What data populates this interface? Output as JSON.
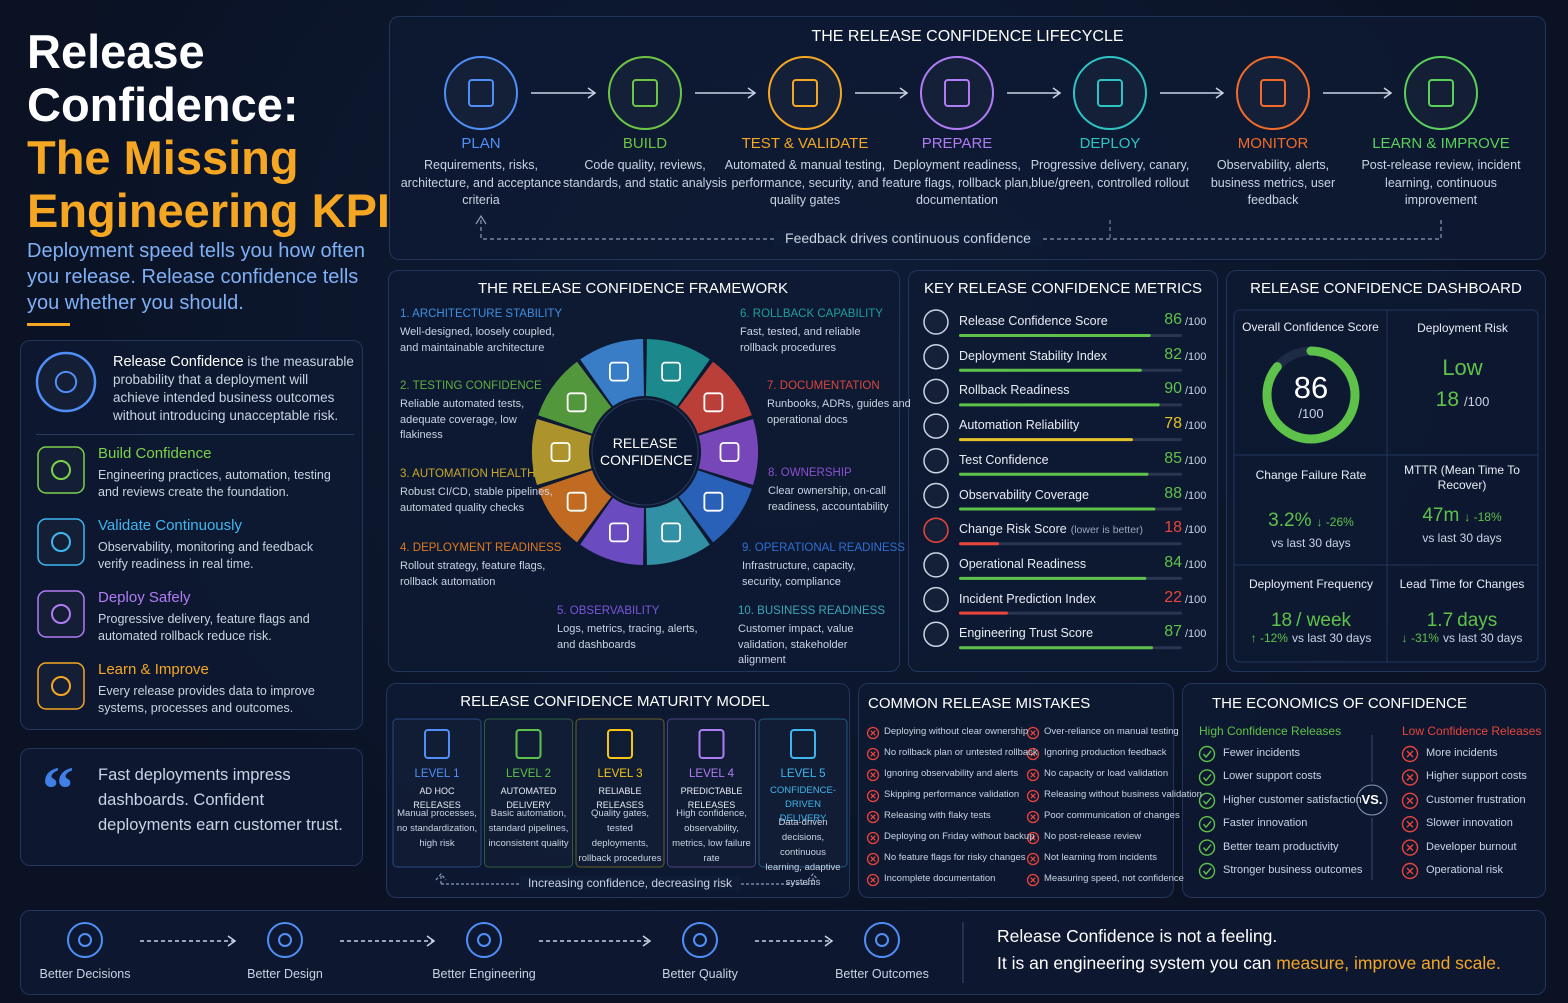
{
  "header": {
    "title_lines": [
      "Release",
      "Confidence:"
    ],
    "highlight_lines": [
      "The Missing",
      "Engineering KPI"
    ],
    "subtitle": "Deployment speed tells you how often you release. Release confidence tells you whether you should."
  },
  "definition": {
    "term": "Release Confidence",
    "text": " is the measurable probability that a deployment will achieve intended business outcomes without introducing unacceptable risk."
  },
  "pillars": [
    {
      "title": "Build Confidence",
      "text": "Engineering practices, automation, testing and reviews create the foundation.",
      "color": "#7bd14a"
    },
    {
      "title": "Validate Continuously",
      "text": "Observability, monitoring and feedback verify readiness in real time.",
      "color": "#3fb6f0"
    },
    {
      "title": "Deploy Safely",
      "text": "Progressive delivery, feature flags and automated rollback reduce risk.",
      "color": "#b07cf5"
    },
    {
      "title": "Learn & Improve",
      "text": "Every release provides data to improve systems, processes and outcomes.",
      "color": "#f5a623"
    }
  ],
  "quote": "Fast deployments impress dashboards. Confident deployments earn customer trust.",
  "lifecycle": {
    "title": "THE RELEASE CONFIDENCE LIFECYCLE",
    "feedback": "Feedback drives continuous confidence",
    "steps": [
      {
        "name": "PLAN",
        "desc": "Requirements, risks, architecture, and acceptance criteria",
        "color": "#4f8ff7"
      },
      {
        "name": "BUILD",
        "desc": "Code quality, reviews, standards, and static analysis",
        "color": "#6cc644"
      },
      {
        "name": "TEST & VALIDATE",
        "desc": "Automated & manual testing, performance, security, and quality gates",
        "color": "#f5a623"
      },
      {
        "name": "PREPARE",
        "desc": "Deployment readiness, feature flags, rollback plan, documentation",
        "color": "#b07cf5"
      },
      {
        "name": "DEPLOY",
        "desc": "Progressive delivery, canary, blue/green, controlled rollout",
        "color": "#2ec4c4"
      },
      {
        "name": "MONITOR",
        "desc": "Observability, alerts, business metrics, user feedback",
        "color": "#f26b2a"
      },
      {
        "name": "LEARN & IMPROVE",
        "desc": "Post-release review, incident learning, continuous improvement",
        "color": "#5ad05a"
      }
    ]
  },
  "framework": {
    "title": "THE RELEASE CONFIDENCE FRAMEWORK",
    "center": "RELEASE CONFIDENCE",
    "items": [
      {
        "title": "1. ARCHITECTURE STABILITY",
        "text": "Well-designed, loosely coupled, and maintainable architecture",
        "color": "#3f8fe0"
      },
      {
        "title": "2. TESTING CONFIDENCE",
        "text": "Reliable automated tests, adequate coverage, low flakiness",
        "color": "#5fae3e"
      },
      {
        "title": "3. AUTOMATION HEALTH",
        "text": "Robust CI/CD, stable pipelines, automated quality checks",
        "color": "#c9a92a"
      },
      {
        "title": "4. DEPLOYMENT READINESS",
        "text": "Rollout strategy, feature flags, rollback automation",
        "color": "#e07a1f"
      },
      {
        "title": "5. OBSERVABILITY",
        "text": "Logs, metrics, tracing, alerts, and dashboards",
        "color": "#7b55d9"
      },
      {
        "title": "6. ROLLBACK CAPABILITY",
        "text": "Fast, tested, and reliable rollback procedures",
        "color": "#1f9e9e"
      },
      {
        "title": "7. DOCUMENTATION",
        "text": "Runbooks, ADRs, guides and operational docs",
        "color": "#d9473b"
      },
      {
        "title": "8. OWNERSHIP",
        "text": "Clear ownership, on-call readiness, accountability",
        "color": "#8a4fd0"
      },
      {
        "title": "9. OPERATIONAL READINESS",
        "text": "Infrastructure, capacity, security, compliance",
        "color": "#2f6fd0"
      },
      {
        "title": "10. BUSINESS READINESS",
        "text": "Customer impact, value validation, stakeholder alignment",
        "color": "#3aa6b8"
      }
    ]
  },
  "metrics": {
    "title": "KEY RELEASE CONFIDENCE METRICS",
    "scale": {
      "value": 100,
      "label": "/100"
    },
    "rows": [
      {
        "name": "Release Confidence Score",
        "value": 86,
        "color": "#5ec24a"
      },
      {
        "name": "Deployment Stability Index",
        "value": 82,
        "color": "#5ec24a"
      },
      {
        "name": "Rollback Readiness",
        "value": 90,
        "color": "#5ec24a"
      },
      {
        "name": "Automation Reliability",
        "value": 78,
        "color": "#e6c229"
      },
      {
        "name": "Test Confidence",
        "value": 85,
        "color": "#5ec24a"
      },
      {
        "name": "Observability Coverage",
        "value": 88,
        "color": "#5ec24a"
      },
      {
        "name": "Change Risk Score",
        "note": "(lower is better)",
        "value": 18,
        "color": "#e8453c"
      },
      {
        "name": "Operational Readiness",
        "value": 84,
        "color": "#5ec24a"
      },
      {
        "name": "Incident Prediction Index",
        "value": 22,
        "color": "#e8453c"
      },
      {
        "name": "Engineering Trust Score",
        "value": 87,
        "color": "#5ec24a"
      }
    ]
  },
  "dashboard": {
    "title": "RELEASE CONFIDENCE DASHBOARD",
    "overall": {
      "label": "Overall Confidence Score",
      "value": 86,
      "scale": {
        "value": 100,
        "label": "/100"
      },
      "color": "#5ec24a"
    },
    "risk": {
      "label": "Deployment Risk",
      "level": "Low",
      "score": "18",
      "unit": "/100"
    },
    "change_failure": {
      "label": "Change Failure Rate",
      "value": "3.2%",
      "delta": "↓ -26%",
      "note": "vs last 30 days"
    },
    "mttr": {
      "label": "MTTR (Mean Time To Recover)",
      "value": "47m",
      "delta": "↓ -18%",
      "note": "vs last 30 days"
    },
    "frequency": {
      "label": "Deployment Frequency",
      "value": "18",
      "unit": "/ week",
      "delta": "↑ -12%",
      "note": "vs last 30 days"
    },
    "lead_time": {
      "label": "Lead Time for Changes",
      "value": "1.7",
      "unit": "days",
      "delta": "↓ -31%",
      "note": "vs last 30 days"
    }
  },
  "maturity": {
    "title": "RELEASE CONFIDENCE MATURITY MODEL",
    "footer": "Increasing confidence, decreasing risk",
    "levels": [
      {
        "level": "LEVEL 1",
        "name": "AD HOC RELEASES",
        "text": "Manual processes, no standardization, high risk",
        "color": "#4f8ff7"
      },
      {
        "level": "LEVEL 2",
        "name": "AUTOMATED DELIVERY",
        "text": "Basic automation, standard pipelines, inconsistent quality",
        "color": "#5ec24a"
      },
      {
        "level": "LEVEL 3",
        "name": "RELIABLE RELEASES",
        "text": "Quality gates, tested deployments, rollback procedures",
        "color": "#f5c518"
      },
      {
        "level": "LEVEL 4",
        "name": "PREDICTABLE RELEASES",
        "text": "High confidence, observability, metrics, low failure rate",
        "color": "#b07cf5"
      },
      {
        "level": "LEVEL 5",
        "name": "CONFIDENCE-DRIVEN DELIVERY",
        "text": "Data-driven decisions, continuous learning, adaptive systems",
        "color": "#3fb6f0"
      }
    ]
  },
  "mistakes": {
    "title": "COMMON RELEASE MISTAKES",
    "items": [
      "Deploying without clear ownership",
      "No rollback plan or untested rollback",
      "Ignoring observability and alerts",
      "Skipping performance validation",
      "Releasing with flaky tests",
      "Deploying on Friday without backup",
      "No feature flags for risky changes",
      "Incomplete documentation",
      "Over-reliance on manual testing",
      "Ignoring production feedback",
      "No capacity or load validation",
      "Releasing without business validation",
      "Poor communication of changes",
      "No post-release review",
      "Not learning from incidents",
      "Measuring speed, not confidence"
    ]
  },
  "economics": {
    "title": "THE ECONOMICS OF CONFIDENCE",
    "vs": "VS.",
    "high": {
      "title": "High Confidence Releases",
      "items": [
        "Fewer incidents",
        "Lower support costs",
        "Higher customer satisfaction",
        "Faster innovation",
        "Better team productivity",
        "Stronger business outcomes"
      ]
    },
    "low": {
      "title": "Low Confidence Releases",
      "items": [
        "More incidents",
        "Higher support costs",
        "Customer frustration",
        "Slower innovation",
        "Developer burnout",
        "Operational risk"
      ]
    }
  },
  "outcomes": {
    "steps": [
      "Better Decisions",
      "Better Design",
      "Better Engineering",
      "Better Quality",
      "Better Outcomes"
    ],
    "statement": "Release Confidence is not a feeling.",
    "line2": "It is an engineering system you can ",
    "highlight": "measure, improve and scale."
  }
}
